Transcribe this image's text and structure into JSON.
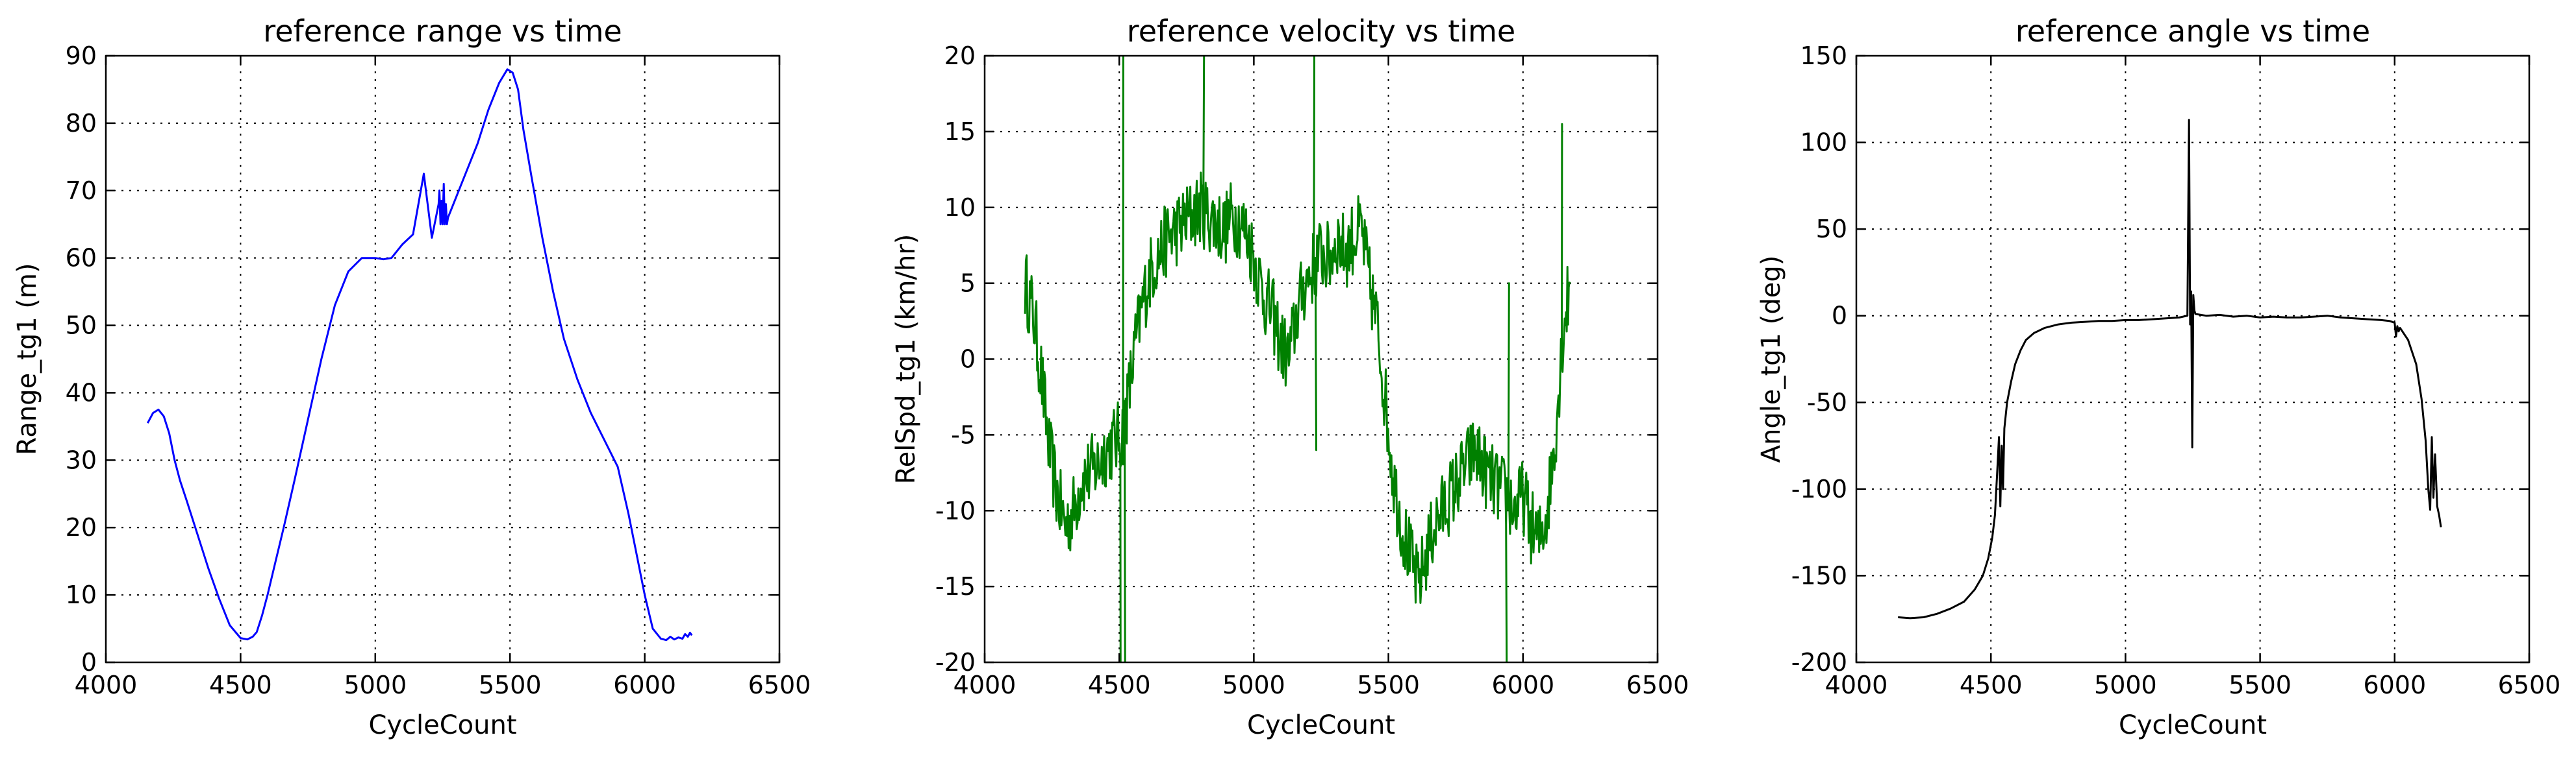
{
  "chart_data": [
    {
      "type": "line",
      "title": "reference range vs time",
      "xlabel": "CycleCount",
      "ylabel": "Range_tg1 (m)",
      "xlim": [
        4000,
        6500
      ],
      "ylim": [
        0,
        90
      ],
      "xticks": [
        4000,
        4500,
        5000,
        5500,
        6000,
        6500
      ],
      "yticks": [
        0,
        10,
        20,
        30,
        40,
        50,
        60,
        70,
        80,
        90
      ],
      "grid": true,
      "series": [
        {
          "color": "#0000ff",
          "x": [
            4155,
            4175,
            4195,
            4215,
            4235,
            4255,
            4275,
            4300,
            4340,
            4380,
            4420,
            4460,
            4500,
            4525,
            4545,
            4560,
            4580,
            4600,
            4630,
            4660,
            4700,
            4750,
            4800,
            4850,
            4900,
            4950,
            5000,
            5030,
            5060,
            5080,
            5100,
            5140,
            5180,
            5210,
            5235,
            5238,
            5242,
            5246,
            5250,
            5254,
            5258,
            5262,
            5266,
            5270,
            5300,
            5340,
            5380,
            5420,
            5460,
            5490,
            5510,
            5530,
            5550,
            5580,
            5620,
            5660,
            5700,
            5750,
            5800,
            5850,
            5900,
            5940,
            5970,
            6000,
            6030,
            6060,
            6080,
            6095,
            6110,
            6125,
            6140,
            6150,
            6160,
            6168,
            6175
          ],
          "y": [
            35.5,
            37,
            37.5,
            36.5,
            34,
            30,
            27,
            24,
            19,
            14,
            9.5,
            5.5,
            3.6,
            3.4,
            3.8,
            4.5,
            7,
            10,
            15,
            20,
            27,
            36,
            45,
            53,
            58,
            60,
            60,
            59.8,
            60,
            61,
            62,
            63.5,
            72.5,
            63,
            68,
            70,
            65,
            68.5,
            65,
            71,
            65,
            68,
            65,
            66,
            69,
            73,
            77,
            82,
            86,
            88,
            87.5,
            85,
            79,
            72,
            63,
            55,
            48,
            42,
            37,
            33,
            29,
            22,
            16,
            10,
            5,
            3.5,
            3.3,
            3.8,
            3.4,
            3.7,
            3.5,
            4.2,
            3.8,
            4.4,
            4.0
          ]
        }
      ]
    },
    {
      "type": "line",
      "title": "reference velocity vs time",
      "xlabel": "CycleCount",
      "ylabel": "RelSpd_tg1 (km/hr)",
      "xlim": [
        4000,
        6500
      ],
      "ylim": [
        -20,
        20
      ],
      "xticks": [
        4000,
        4500,
        5000,
        5500,
        6000,
        6500
      ],
      "yticks": [
        -20,
        -15,
        -10,
        -5,
        0,
        5,
        10,
        15,
        20
      ],
      "grid": true,
      "series": [
        {
          "color": "#008000",
          "x": [
            4150,
            4180,
            4210,
            4240,
            4270,
            4300,
            4330,
            4360,
            4390,
            4420,
            4450,
            4480,
            4510,
            4530,
            4560,
            4590,
            4620,
            4650,
            4680,
            4710,
            4740,
            4770,
            4800,
            4830,
            4860,
            4890,
            4920,
            4950,
            4980,
            5010,
            5040,
            5070,
            5100,
            5130,
            5160,
            5190,
            5220,
            5250,
            5280,
            5310,
            5340,
            5370,
            5400,
            5430,
            5460,
            5490,
            5520,
            5550,
            5580,
            5610,
            5640,
            5670,
            5700,
            5730,
            5760,
            5790,
            5820,
            5850,
            5880,
            5910,
            5940,
            5970,
            6000,
            6030,
            6060,
            6090,
            6120,
            6150,
            6175
          ],
          "y": [
            5,
            3,
            -1,
            -6,
            -9,
            -11,
            -10,
            -8,
            -7.5,
            -7,
            -6,
            -5.5,
            -5,
            -3,
            1,
            4,
            6,
            7,
            8,
            8.5,
            9,
            9.5,
            10,
            9.5,
            9,
            8.5,
            9.5,
            9,
            8,
            6,
            4,
            3,
            1,
            0,
            3,
            5,
            6,
            7,
            6.5,
            8,
            7,
            8,
            8.5,
            5,
            2,
            -3,
            -8,
            -11,
            -13,
            -15,
            -13,
            -11,
            -10,
            -9,
            -8,
            -7,
            -6,
            -7,
            -8,
            -8.5,
            -9,
            -10,
            -9,
            -11,
            -12,
            -10,
            -5,
            2,
            5
          ]
        }
      ]
    },
    {
      "type": "line",
      "title": "reference angle vs time",
      "xlabel": "CycleCount",
      "ylabel": "Angle_tg1 (deg)",
      "xlim": [
        4000,
        6500
      ],
      "ylim": [
        -200,
        150
      ],
      "xticks": [
        4000,
        4500,
        5000,
        5500,
        6000,
        6500
      ],
      "yticks": [
        -200,
        -150,
        -100,
        -50,
        0,
        50,
        100,
        150
      ],
      "grid": true,
      "series": [
        {
          "color": "#000000",
          "x": [
            4155,
            4200,
            4250,
            4300,
            4350,
            4400,
            4440,
            4470,
            4490,
            4505,
            4515,
            4525,
            4530,
            4535,
            4540,
            4545,
            4550,
            4560,
            4575,
            4590,
            4610,
            4630,
            4660,
            4700,
            4750,
            4800,
            4850,
            4900,
            4950,
            5000,
            5050,
            5100,
            5150,
            5200,
            5230,
            5236,
            5240,
            5244,
            5248,
            5252,
            5256,
            5260,
            5300,
            5350,
            5400,
            5450,
            5500,
            5550,
            5600,
            5650,
            5700,
            5750,
            5800,
            5850,
            5900,
            5950,
            5980,
            6000,
            6005,
            6010,
            6015,
            6020,
            6050,
            6080,
            6100,
            6115,
            6125,
            6132,
            6138,
            6144,
            6150,
            6158,
            6165,
            6172
          ],
          "y": [
            -174,
            -174.5,
            -174,
            -172,
            -169,
            -165,
            -158,
            -150,
            -140,
            -128,
            -115,
            -85,
            -70,
            -110,
            -75,
            -100,
            -65,
            -50,
            -38,
            -28,
            -20,
            -14,
            -10,
            -7,
            -5,
            -4,
            -3.5,
            -3,
            -3,
            -2.5,
            -2.5,
            -2,
            -1.5,
            -1,
            0,
            113,
            -5,
            14,
            -76,
            12,
            3,
            1,
            0,
            0.5,
            -0.5,
            0,
            -1,
            -0.5,
            -1,
            -1,
            -0.5,
            0,
            -1,
            -1.5,
            -2,
            -2.5,
            -3,
            -4,
            -12,
            -6,
            -9,
            -7,
            -14,
            -28,
            -48,
            -72,
            -100,
            -112,
            -70,
            -105,
            -80,
            -110,
            -115,
            -122
          ]
        }
      ]
    }
  ]
}
